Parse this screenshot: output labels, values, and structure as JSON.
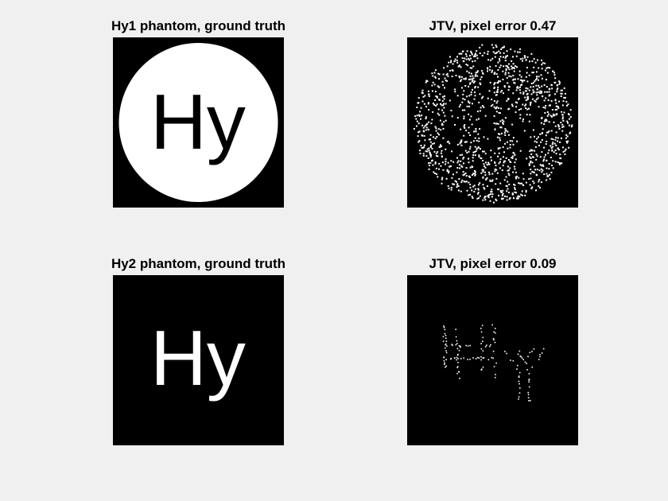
{
  "panels": [
    {
      "title": "Hy1 phantom, ground truth",
      "image": "Hy1 ground truth"
    },
    {
      "title": "JTV, pixel error 0.47",
      "image": "Hy1 JTV reconstruction"
    },
    {
      "title": "Hy2 phantom, ground truth",
      "image": "Hy2 ground truth"
    },
    {
      "title": "JTV, pixel error 0.09",
      "image": "Hy2 JTV reconstruction"
    }
  ],
  "colors": {
    "background": "#f0f0f0",
    "image_background": "#000000",
    "foreground": "#ffffff"
  }
}
